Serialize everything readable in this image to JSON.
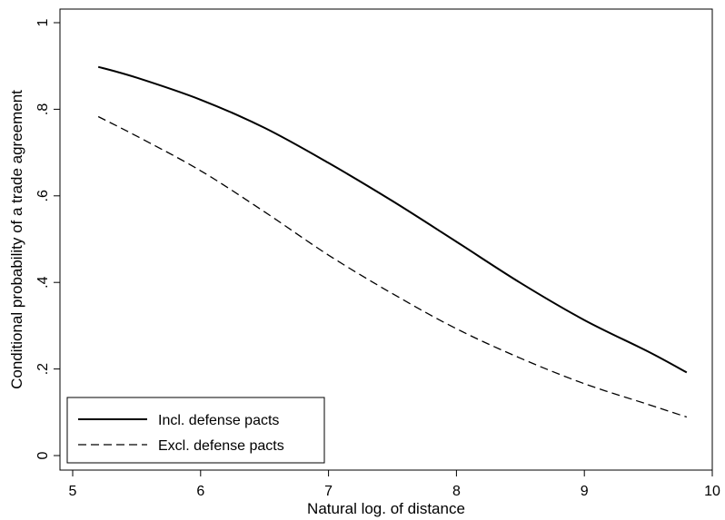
{
  "chart_data": {
    "type": "line",
    "xlabel": "Natural log. of distance",
    "ylabel": "Conditional probability of a trade agreement",
    "xlim": [
      5,
      10
    ],
    "ylim": [
      0,
      1
    ],
    "x_ticks": [
      "5",
      "6",
      "7",
      "8",
      "9",
      "10"
    ],
    "y_ticks": [
      "0",
      ".2",
      ".4",
      ".6",
      ".8",
      "1"
    ],
    "grid": false,
    "legend_position": "bottom-left",
    "x": [
      5.2,
      5.5,
      6.0,
      6.5,
      7.0,
      7.5,
      8.0,
      8.5,
      9.0,
      9.5,
      9.8
    ],
    "series": [
      {
        "name": "Incl. defense pacts",
        "line_style": "solid",
        "color": "#000000",
        "values": [
          0.898,
          0.873,
          0.822,
          0.757,
          0.676,
          0.588,
          0.494,
          0.399,
          0.313,
          0.24,
          0.192
        ]
      },
      {
        "name": "Excl. defense pacts",
        "line_style": "dashed",
        "color": "#000000",
        "values": [
          0.783,
          0.738,
          0.658,
          0.563,
          0.463,
          0.374,
          0.293,
          0.225,
          0.166,
          0.118,
          0.089
        ]
      }
    ]
  }
}
